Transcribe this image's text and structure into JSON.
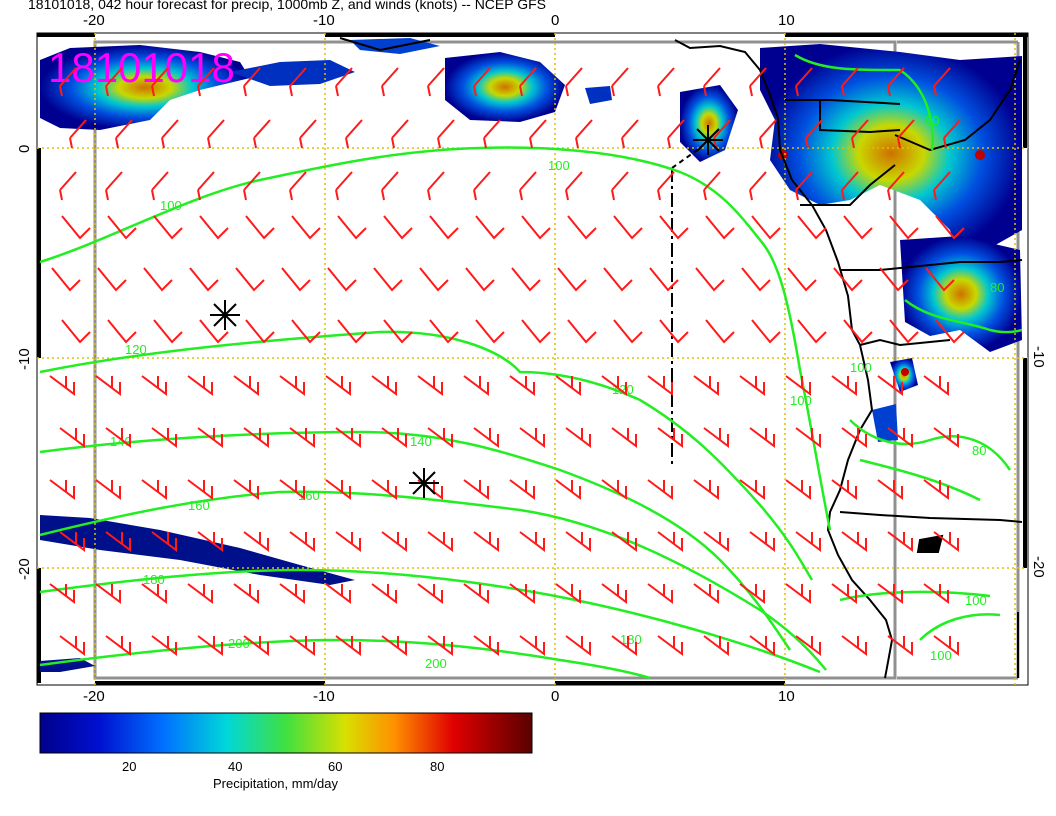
{
  "header": {
    "title": "18101018, 042 hour forecast for precip, 1000mb Z, and winds (knots) -- NCEP GFS",
    "date_stamp": "18101018"
  },
  "map": {
    "x_ticks_top": [
      "-20",
      "-10",
      "0",
      "10"
    ],
    "x_ticks_bottom": [
      "-20",
      "-10",
      "0",
      "10"
    ],
    "y_ticks_left": [
      "0",
      "-10",
      "-20"
    ],
    "y_ticks_right": [
      "-10",
      "-20"
    ],
    "contour_labels": [
      "100",
      "100",
      "120",
      "120",
      "140",
      "140",
      "160",
      "160",
      "180",
      "180",
      "200",
      "200",
      "100",
      "100",
      "80",
      "80",
      "80",
      "100",
      "100"
    ],
    "colors": {
      "contour": "#22ee22",
      "wind_barb": "#ff1a1a",
      "date_stamp": "#ff00ff",
      "grid": "#e0c000",
      "coast": "#000000"
    }
  },
  "colorbar": {
    "ticks": [
      "20",
      "40",
      "60",
      "80"
    ],
    "label": "Precipitation, mm/day",
    "range": [
      0,
      100
    ]
  }
}
